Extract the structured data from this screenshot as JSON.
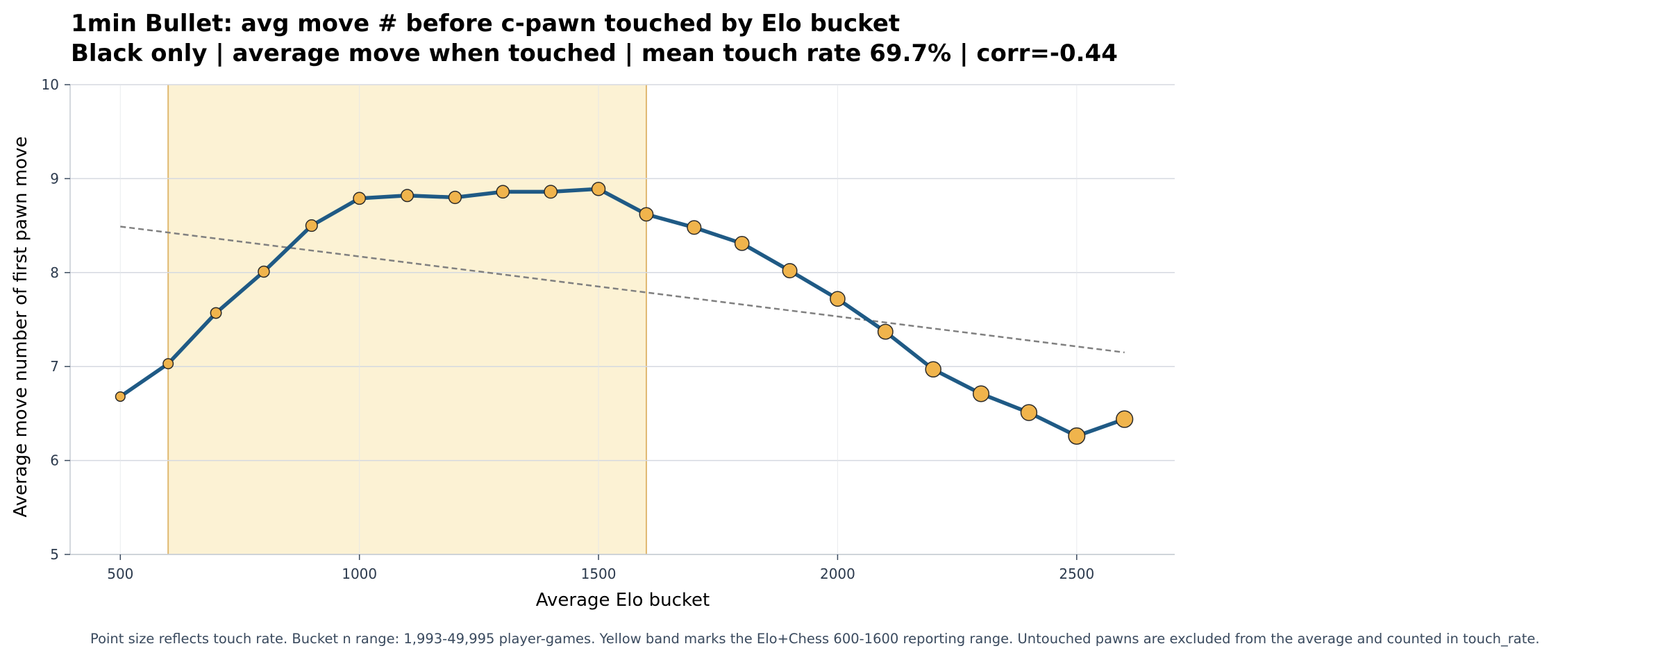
{
  "chart_data": {
    "type": "line",
    "title": "1min Bullet: avg move # before c-pawn touched by Elo bucket",
    "subtitle": "Black only | average move when touched | mean touch rate 69.7% | corr=-0.44",
    "xlabel": "Average Elo bucket",
    "ylabel": "Average move number of first pawn move",
    "xlim": [
      395,
      2705
    ],
    "ylim": [
      5,
      10
    ],
    "x_ticks": [
      "500",
      "1000",
      "1500",
      "2000",
      "2500"
    ],
    "y_ticks": [
      "5",
      "6",
      "7",
      "8",
      "9",
      "10"
    ],
    "grid": true,
    "highlight_band": {
      "x_start": 600,
      "x_end": 1600,
      "color": "#fcf2d4",
      "edge_color": "#e0b870"
    },
    "series": [
      {
        "line_color": "#1f5a85",
        "marker_color": "#f0b44c",
        "points": [
          {
            "x": 500,
            "y": 6.68,
            "touch_rate": 0.52
          },
          {
            "x": 600,
            "y": 7.03,
            "touch_rate": 0.55
          },
          {
            "x": 700,
            "y": 7.57,
            "touch_rate": 0.58
          },
          {
            "x": 800,
            "y": 8.01,
            "touch_rate": 0.6
          },
          {
            "x": 900,
            "y": 8.5,
            "touch_rate": 0.62
          },
          {
            "x": 1000,
            "y": 8.79,
            "touch_rate": 0.64
          },
          {
            "x": 1100,
            "y": 8.82,
            "touch_rate": 0.65
          },
          {
            "x": 1200,
            "y": 8.8,
            "touch_rate": 0.66
          },
          {
            "x": 1300,
            "y": 8.86,
            "touch_rate": 0.67
          },
          {
            "x": 1400,
            "y": 8.86,
            "touch_rate": 0.68
          },
          {
            "x": 1500,
            "y": 8.89,
            "touch_rate": 0.7
          },
          {
            "x": 1600,
            "y": 8.62,
            "touch_rate": 0.71
          },
          {
            "x": 1700,
            "y": 8.48,
            "touch_rate": 0.72
          },
          {
            "x": 1800,
            "y": 8.31,
            "touch_rate": 0.74
          },
          {
            "x": 1900,
            "y": 8.02,
            "touch_rate": 0.75
          },
          {
            "x": 2000,
            "y": 7.72,
            "touch_rate": 0.77
          },
          {
            "x": 2100,
            "y": 7.37,
            "touch_rate": 0.78
          },
          {
            "x": 2200,
            "y": 6.97,
            "touch_rate": 0.8
          },
          {
            "x": 2300,
            "y": 6.71,
            "touch_rate": 0.82
          },
          {
            "x": 2400,
            "y": 6.51,
            "touch_rate": 0.83
          },
          {
            "x": 2500,
            "y": 6.26,
            "touch_rate": 0.85
          },
          {
            "x": 2600,
            "y": 6.44,
            "touch_rate": 0.86
          }
        ]
      }
    ],
    "trend_line": {
      "x": [
        500,
        2600
      ],
      "y": [
        8.49,
        7.15
      ],
      "color": "#808080"
    },
    "footnote": "Point size reflects touch rate. Bucket n range: 1,993-49,995 player-games. Yellow band marks the Elo+Chess 600-1600 reporting range. Untouched pawns are excluded from the average and counted in touch_rate."
  }
}
